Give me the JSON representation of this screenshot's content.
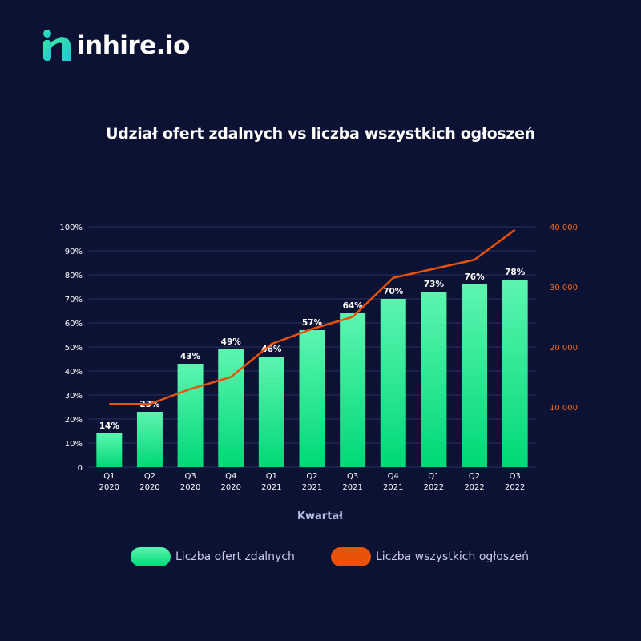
{
  "logo": {
    "text": "inhire.io",
    "icon": "inhire-h-logo-icon"
  },
  "colors": {
    "background": "#0c1234",
    "bar_top": "#5cf5b0",
    "bar_bottom": "#00d877",
    "line": "#e8520a",
    "grid": "#2a3162",
    "left_tick": "#ffffff",
    "right_tick": "#f06a20",
    "xlabel": "#b7bde6"
  },
  "chart_data": {
    "type": "bar",
    "title": "Udział ofert zdalnych vs liczba wszystkich ogłoszeń",
    "xlabel": "Kwartał",
    "categories": [
      [
        "Q1",
        "2020"
      ],
      [
        "Q2",
        "2020"
      ],
      [
        "Q3",
        "2020"
      ],
      [
        "Q4",
        "2020"
      ],
      [
        "Q1",
        "2021"
      ],
      [
        "Q2",
        "2021"
      ],
      [
        "Q3",
        "2021"
      ],
      [
        "Q4",
        "2021"
      ],
      [
        "Q1",
        "2022"
      ],
      [
        "Q2",
        "2022"
      ],
      [
        "Q3",
        "2022"
      ]
    ],
    "left_axis": {
      "ylim": [
        0,
        100
      ],
      "ticks": [
        0,
        10,
        20,
        30,
        40,
        50,
        60,
        70,
        80,
        90,
        100
      ],
      "tick_labels": [
        "0",
        "10%",
        "20%",
        "30%",
        "40%",
        "50%",
        "60%",
        "70%",
        "80%",
        "90%",
        "100%"
      ]
    },
    "right_axis": {
      "ylim": [
        0,
        40000
      ],
      "ticks": [
        10000,
        20000,
        30000,
        40000
      ],
      "tick_labels": [
        "10 000",
        "20 000",
        "30 000",
        "40 000"
      ]
    },
    "series": [
      {
        "name": "Liczba ofert zdalnych",
        "type": "bar",
        "axis": "left",
        "values": [
          14,
          23,
          43,
          49,
          46,
          57,
          64,
          70,
          73,
          76,
          78
        ],
        "data_labels": [
          "14%",
          "23%",
          "43%",
          "49%",
          "46%",
          "57%",
          "64%",
          "70%",
          "73%",
          "76%",
          "78%"
        ]
      },
      {
        "name": "Liczba wszystkich ogłoszeń",
        "type": "line",
        "axis": "right",
        "values": [
          10500,
          10500,
          13000,
          15000,
          20500,
          23000,
          25000,
          31500,
          33000,
          34500,
          39500
        ]
      }
    ],
    "legend_position": "bottom",
    "grid": true
  }
}
